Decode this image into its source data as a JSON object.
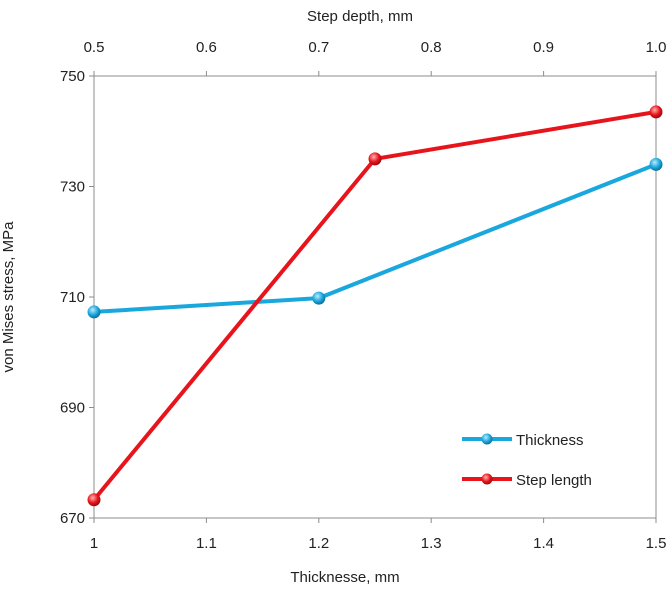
{
  "chart_data": {
    "type": "line",
    "xlabel": "Thicknesse, mm",
    "x2label": "Step depth, mm",
    "ylabel": "von Mises stress, MPa",
    "xlim": [
      1,
      1.5
    ],
    "x2lim": [
      0.5,
      1.0
    ],
    "ylim": [
      670,
      750
    ],
    "x_ticks": [
      "1",
      "1.1",
      "1.2",
      "1.3",
      "1.4",
      "1.5"
    ],
    "x2_ticks": [
      "0.5",
      "0.6",
      "0.7",
      "0.8",
      "0.9",
      "1.0"
    ],
    "y_ticks": [
      "670",
      "690",
      "710",
      "730",
      "750"
    ],
    "grid": false,
    "legend_position": "bottom-right",
    "series": [
      {
        "name": "Thickness",
        "axis": "bottom",
        "color": "#1aa7dd",
        "x": [
          1.0,
          1.2,
          1.5
        ],
        "y": [
          707.3,
          709.8,
          734.0
        ]
      },
      {
        "name": "Step length",
        "axis": "top",
        "color": "#e8141b",
        "x": [
          0.5,
          0.75,
          1.0
        ],
        "y": [
          673.3,
          735.0,
          743.5
        ]
      }
    ]
  }
}
